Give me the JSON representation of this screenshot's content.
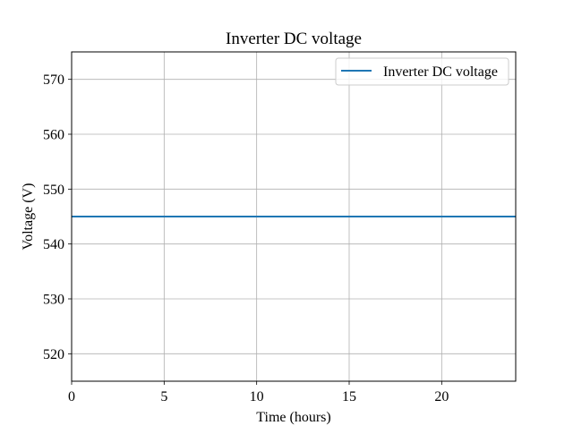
{
  "chart_data": {
    "type": "line",
    "title": "Inverter DC voltage",
    "xlabel": "Time (hours)",
    "ylabel": "Voltage (V)",
    "xlim": [
      0,
      24
    ],
    "ylim": [
      515,
      575
    ],
    "xticks": [
      0,
      5,
      10,
      15,
      20
    ],
    "yticks": [
      520,
      530,
      540,
      550,
      560,
      570
    ],
    "grid": true,
    "legend_position": "top-right",
    "series": [
      {
        "name": "Inverter DC voltage",
        "color": "#1f77b4",
        "x": [
          0,
          24
        ],
        "y": [
          545,
          545
        ]
      }
    ]
  }
}
